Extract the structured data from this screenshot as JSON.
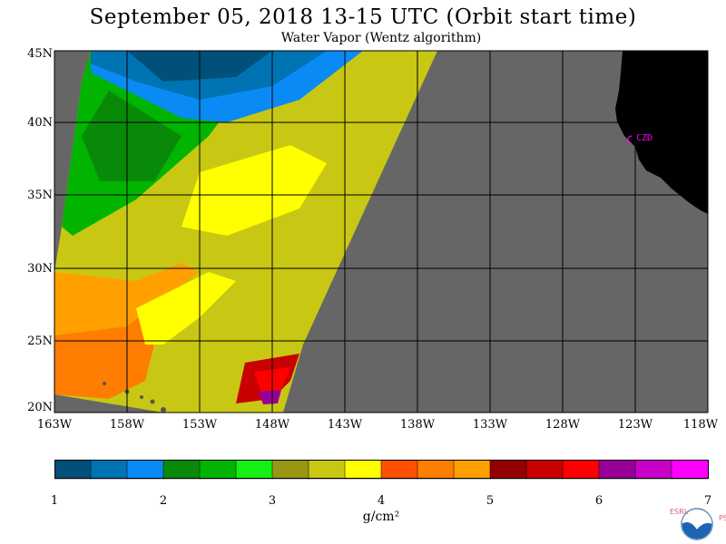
{
  "title": "September 05, 2018  13-15 UTC  (Orbit start time)",
  "subtitle": "Water Vapor (Wentz algorithm)",
  "lat_labels": [
    "45N",
    "40N",
    "35N",
    "30N",
    "25N",
    "20N"
  ],
  "lon_labels": [
    "163W",
    "158W",
    "153W",
    "148W",
    "143W",
    "138W",
    "133W",
    "128W",
    "123W",
    "118W"
  ],
  "station_label": "CZD",
  "colorbar": {
    "colors": [
      "#00507a",
      "#0073b3",
      "#0a8af5",
      "#088a08",
      "#00b400",
      "#14f014",
      "#999614",
      "#c8c814",
      "#ffff00",
      "#ff5000",
      "#ff7d00",
      "#ffa000",
      "#960000",
      "#c80000",
      "#ff0000",
      "#960096",
      "#c800c8",
      "#ff00ff"
    ],
    "tick_labels": [
      "1",
      "2",
      "3",
      "4",
      "5",
      "6",
      "7"
    ],
    "unit": "g/cm²"
  },
  "colors": {
    "no_data": "#666666",
    "land": "#000000",
    "grid": "#000000",
    "station": "#ff00ff"
  },
  "logo": {
    "name": "noaa-logo",
    "left_text": "ESRL",
    "right_text": "PSD"
  }
}
